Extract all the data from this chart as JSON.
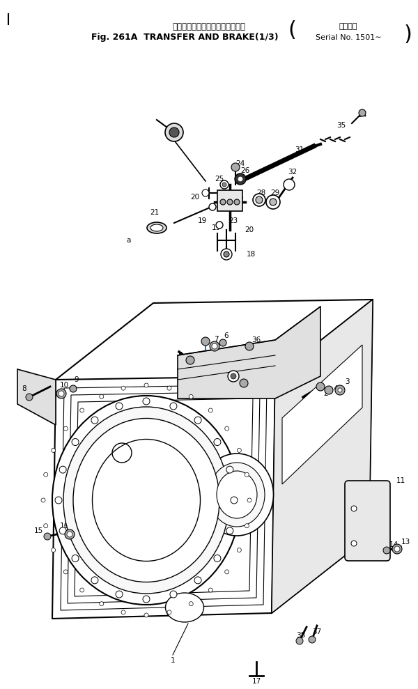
{
  "title_jp": "トランスファ　および　ブレーキ",
  "title_en": "Fig. 261A  TRANSFER AND BRAKE(1/3)",
  "serial_jp": "適用号機",
  "serial_en": "Serial No. 1501∼",
  "bg_color": "#ffffff",
  "line_color": "#000000",
  "fig_width": 6.0,
  "fig_height": 9.89,
  "dpi": 100
}
